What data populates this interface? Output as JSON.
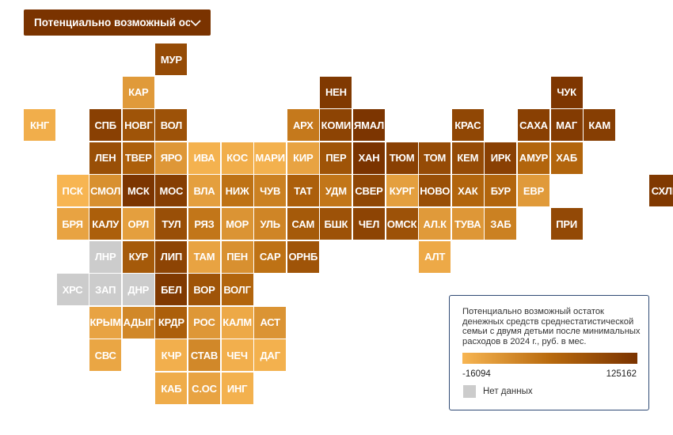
{
  "dropdown": {
    "label": "Потенциально возможный ос...",
    "icon": "chevron-down-icon"
  },
  "colors": {
    "min": "#f7b552",
    "max": "#7a3300",
    "no_data": "#cccccc",
    "legend_border": "#2f4a74"
  },
  "legend": {
    "title": "Потенциально возможный остаток денежных средств среднестатистической семьи с двумя детьми после минимальных расходов в 2024 г., руб. в мес.",
    "min_label": "-16094",
    "max_label": "125162",
    "min_value": -16094,
    "max_value": 125162,
    "no_data_label": "Нет данных"
  },
  "regions": [
    {
      "code": "МУР",
      "row": 0,
      "col": 4,
      "value": 0.78
    },
    {
      "code": "КАР",
      "row": 1,
      "col": 3,
      "value": 0.18
    },
    {
      "code": "НЕН",
      "row": 1,
      "col": 9,
      "value": 0.95
    },
    {
      "code": "ЧУК",
      "row": 1,
      "col": 16,
      "value": 0.97
    },
    {
      "code": "КНГ",
      "row": 2,
      "col": 0,
      "value": 0.05
    },
    {
      "code": "СПБ",
      "row": 2,
      "col": 2,
      "value": 0.88
    },
    {
      "code": "НОВГ",
      "row": 2,
      "col": 3,
      "value": 0.7
    },
    {
      "code": "ВОЛ",
      "row": 2,
      "col": 4,
      "value": 0.72
    },
    {
      "code": "АРХ",
      "row": 2,
      "col": 8,
      "value": 0.4
    },
    {
      "code": "КОМИ",
      "row": 2,
      "col": 9,
      "value": 0.85
    },
    {
      "code": "ЯМАЛ",
      "row": 2,
      "col": 10,
      "value": 0.98
    },
    {
      "code": "КРАС",
      "row": 2,
      "col": 13,
      "value": 0.82
    },
    {
      "code": "САХА",
      "row": 2,
      "col": 15,
      "value": 0.88
    },
    {
      "code": "МАГ",
      "row": 2,
      "col": 16,
      "value": 0.93
    },
    {
      "code": "КАМ",
      "row": 2,
      "col": 17,
      "value": 0.9
    },
    {
      "code": "ЛЕН",
      "row": 3,
      "col": 2,
      "value": 0.75
    },
    {
      "code": "ТВЕР",
      "row": 3,
      "col": 3,
      "value": 0.6
    },
    {
      "code": "ЯРО",
      "row": 3,
      "col": 4,
      "value": 0.2
    },
    {
      "code": "ИВА",
      "row": 3,
      "col": 5,
      "value": 0.02
    },
    {
      "code": "КОС",
      "row": 3,
      "col": 6,
      "value": 0.05
    },
    {
      "code": "МАРИ",
      "row": 3,
      "col": 7,
      "value": 0.03
    },
    {
      "code": "КИР",
      "row": 3,
      "col": 8,
      "value": 0.12
    },
    {
      "code": "ПЕР",
      "row": 3,
      "col": 9,
      "value": 0.7
    },
    {
      "code": "ХАН",
      "row": 3,
      "col": 10,
      "value": 1.0
    },
    {
      "code": "ТЮМ",
      "row": 3,
      "col": 11,
      "value": 0.88
    },
    {
      "code": "ТОМ",
      "row": 3,
      "col": 12,
      "value": 0.78
    },
    {
      "code": "КЕМ",
      "row": 3,
      "col": 13,
      "value": 0.78
    },
    {
      "code": "ИРК",
      "row": 3,
      "col": 14,
      "value": 0.88
    },
    {
      "code": "АМУР",
      "row": 3,
      "col": 15,
      "value": 0.55
    },
    {
      "code": "ХАБ",
      "row": 3,
      "col": 16,
      "value": 0.55
    },
    {
      "code": "ПСК",
      "row": 4,
      "col": 1,
      "value": 0.0
    },
    {
      "code": "СМОЛ",
      "row": 4,
      "col": 2,
      "value": 0.25
    },
    {
      "code": "МСК",
      "row": 4,
      "col": 3,
      "value": 0.98
    },
    {
      "code": "МОС",
      "row": 4,
      "col": 4,
      "value": 0.9
    },
    {
      "code": "ВЛА",
      "row": 4,
      "col": 5,
      "value": 0.15
    },
    {
      "code": "НИЖ",
      "row": 4,
      "col": 6,
      "value": 0.45
    },
    {
      "code": "ЧУВ",
      "row": 4,
      "col": 7,
      "value": 0.35
    },
    {
      "code": "ТАТ",
      "row": 4,
      "col": 8,
      "value": 0.6
    },
    {
      "code": "УДМ",
      "row": 4,
      "col": 9,
      "value": 0.42
    },
    {
      "code": "СВЕР",
      "row": 4,
      "col": 10,
      "value": 0.82
    },
    {
      "code": "КУРГ",
      "row": 4,
      "col": 11,
      "value": 0.15
    },
    {
      "code": "НОВО",
      "row": 4,
      "col": 12,
      "value": 0.75
    },
    {
      "code": "ХАК",
      "row": 4,
      "col": 13,
      "value": 0.55
    },
    {
      "code": "БУР",
      "row": 4,
      "col": 14,
      "value": 0.55
    },
    {
      "code": "ЕВР",
      "row": 4,
      "col": 15,
      "value": 0.18
    },
    {
      "code": "СХЛН",
      "row": 4,
      "col": 19,
      "value": 0.95
    },
    {
      "code": "БРЯ",
      "row": 5,
      "col": 1,
      "value": 0.12
    },
    {
      "code": "КАЛУ",
      "row": 5,
      "col": 2,
      "value": 0.6
    },
    {
      "code": "ОРЛ",
      "row": 5,
      "col": 3,
      "value": 0.15
    },
    {
      "code": "ТУЛ",
      "row": 5,
      "col": 4,
      "value": 0.75
    },
    {
      "code": "РЯЗ",
      "row": 5,
      "col": 5,
      "value": 0.42
    },
    {
      "code": "МОР",
      "row": 5,
      "col": 6,
      "value": 0.22
    },
    {
      "code": "УЛЬ",
      "row": 5,
      "col": 7,
      "value": 0.32
    },
    {
      "code": "САМ",
      "row": 5,
      "col": 8,
      "value": 0.65
    },
    {
      "code": "БШК",
      "row": 5,
      "col": 9,
      "value": 0.72
    },
    {
      "code": "ЧЕЛ",
      "row": 5,
      "col": 10,
      "value": 0.85
    },
    {
      "code": "ОМСК",
      "row": 5,
      "col": 11,
      "value": 0.72
    },
    {
      "code": "АЛ.К",
      "row": 5,
      "col": 12,
      "value": 0.18
    },
    {
      "code": "ТУВА",
      "row": 5,
      "col": 13,
      "value": 0.2
    },
    {
      "code": "ЗАБ",
      "row": 5,
      "col": 14,
      "value": 0.35
    },
    {
      "code": "ПРИ",
      "row": 5,
      "col": 16,
      "value": 0.8
    },
    {
      "code": "ЛНР",
      "row": 6,
      "col": 2,
      "value": null
    },
    {
      "code": "КУР",
      "row": 6,
      "col": 3,
      "value": 0.65
    },
    {
      "code": "ЛИП",
      "row": 6,
      "col": 4,
      "value": 0.85
    },
    {
      "code": "ТАМ",
      "row": 6,
      "col": 5,
      "value": 0.12
    },
    {
      "code": "ПЕН",
      "row": 6,
      "col": 6,
      "value": 0.25
    },
    {
      "code": "САР",
      "row": 6,
      "col": 7,
      "value": 0.45
    },
    {
      "code": "ОРНБ",
      "row": 6,
      "col": 8,
      "value": 0.7
    },
    {
      "code": "АЛТ",
      "row": 6,
      "col": 12,
      "value": 0.08
    },
    {
      "code": "ХРС",
      "row": 7,
      "col": 1,
      "value": null
    },
    {
      "code": "ЗАП",
      "row": 7,
      "col": 2,
      "value": null
    },
    {
      "code": "ДНР",
      "row": 7,
      "col": 3,
      "value": null
    },
    {
      "code": "БЕЛ",
      "row": 7,
      "col": 4,
      "value": 0.95
    },
    {
      "code": "ВОР",
      "row": 7,
      "col": 5,
      "value": 0.7
    },
    {
      "code": "ВОЛГ",
      "row": 7,
      "col": 6,
      "value": 0.55
    },
    {
      "code": "КРЫМ",
      "row": 8,
      "col": 2,
      "value": 0.12
    },
    {
      "code": "АДЫГ",
      "row": 8,
      "col": 3,
      "value": 0.3
    },
    {
      "code": "КРДР",
      "row": 8,
      "col": 4,
      "value": 0.6
    },
    {
      "code": "РОС",
      "row": 8,
      "col": 5,
      "value": 0.2
    },
    {
      "code": "КАЛМ",
      "row": 8,
      "col": 6,
      "value": 0.08
    },
    {
      "code": "АСТ",
      "row": 8,
      "col": 7,
      "value": 0.22
    },
    {
      "code": "СВС",
      "row": 9,
      "col": 2,
      "value": 0.1
    },
    {
      "code": "КЧР",
      "row": 9,
      "col": 4,
      "value": 0.04
    },
    {
      "code": "СТАВ",
      "row": 9,
      "col": 5,
      "value": 0.3
    },
    {
      "code": "ЧЕЧ",
      "row": 9,
      "col": 6,
      "value": 0.04
    },
    {
      "code": "ДАГ",
      "row": 9,
      "col": 7,
      "value": 0.03
    },
    {
      "code": "КАБ",
      "row": 10,
      "col": 4,
      "value": 0.06
    },
    {
      "code": "С.ОС",
      "row": 10,
      "col": 5,
      "value": 0.12
    },
    {
      "code": "ИНГ",
      "row": 10,
      "col": 6,
      "value": 0.03
    }
  ]
}
